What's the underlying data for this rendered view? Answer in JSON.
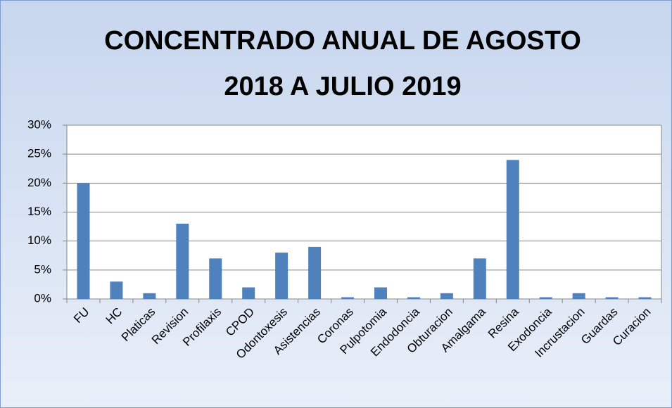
{
  "chart_data": {
    "type": "bar",
    "title": [
      "CONCENTRADO ANUAL DE AGOSTO",
      "2018 A JULIO 2019"
    ],
    "categories": [
      "FU",
      "HC",
      "Platicas",
      "Revision",
      "Profilaxis",
      "CPOD",
      "Odontoxesis",
      "Asistencias",
      "Coronas",
      "Pulpotomia",
      "Endodoncia",
      "Obturacion",
      "Amalgama",
      "Resina",
      "Exodoncia",
      "Incrustacion",
      "Guardas",
      "Curacion"
    ],
    "values": [
      20,
      3,
      1,
      13,
      7,
      2,
      8,
      9,
      0.3,
      2,
      0.3,
      1,
      7,
      24,
      0.3,
      1,
      0.3,
      0.3
    ],
    "color": "#4f81bd",
    "ylim": [
      0,
      30
    ],
    "yticks": [
      {
        "value": 0,
        "label": "0%"
      },
      {
        "value": 5,
        "label": "5%"
      },
      {
        "value": 10,
        "label": "10%"
      },
      {
        "value": 15,
        "label": "15%"
      },
      {
        "value": 20,
        "label": "20%"
      },
      {
        "value": 25,
        "label": "25%"
      },
      {
        "value": 30,
        "label": "30%"
      }
    ],
    "grid": true
  }
}
